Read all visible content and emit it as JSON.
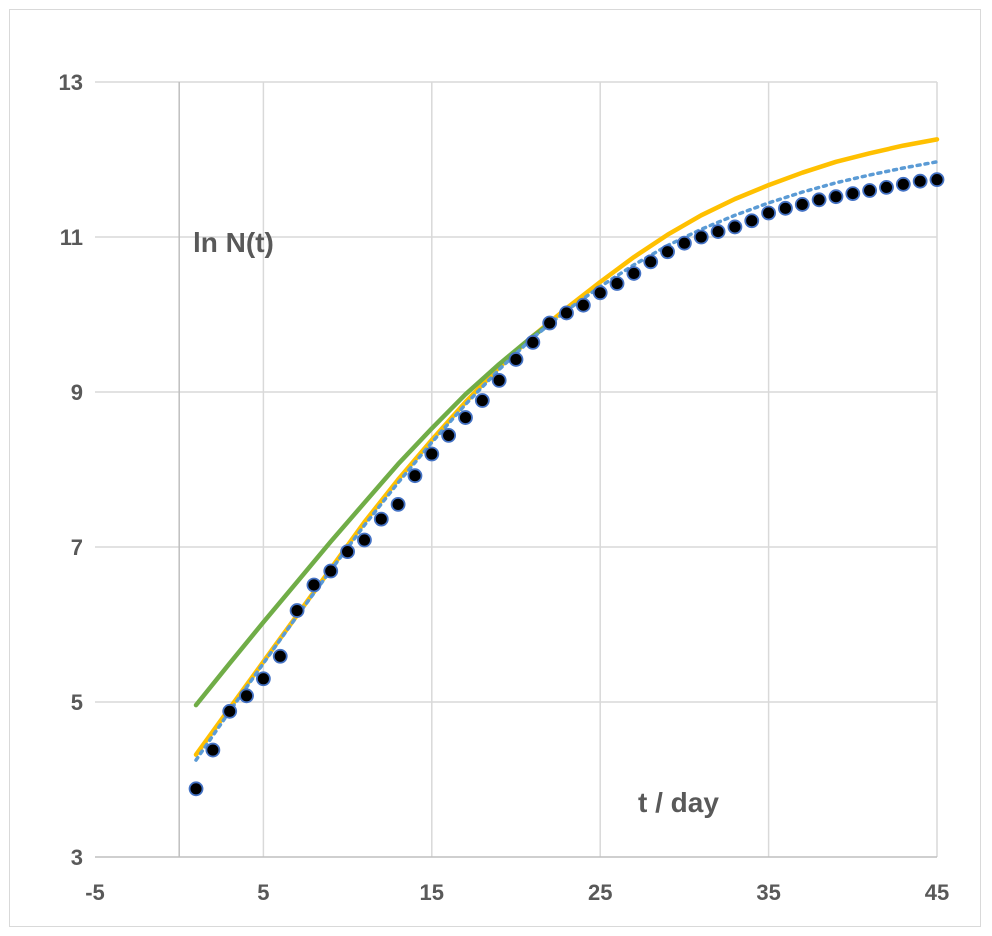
{
  "chart_data": {
    "type": "scatter",
    "title": "",
    "xlabel": "t / day",
    "ylabel": "ln N(t)",
    "xlim": [
      -5,
      45
    ],
    "ylim": [
      3,
      13
    ],
    "x_ticks": [
      "-5",
      "5",
      "15",
      "25",
      "35",
      "45"
    ],
    "y_ticks": [
      "3",
      "5",
      "7",
      "9",
      "11",
      "13"
    ],
    "x_tick_values": [
      -5,
      5,
      15,
      25,
      35,
      45
    ],
    "y_tick_values": [
      3,
      5,
      7,
      9,
      11,
      13
    ],
    "grid": true,
    "legend": "none",
    "colors": {
      "observed_fill": "#000000",
      "observed_edge": "#4472c4",
      "fit_orange": "#ffc000",
      "fit_green": "#70ad47",
      "fit_blue_dotted": "#5b9bd5",
      "grid": "#d9d9d9",
      "axis": "#bfbfbf",
      "text": "#595959"
    },
    "series": [
      {
        "style": "markers",
        "x": [
          1,
          2,
          3,
          4,
          5,
          6,
          7,
          8,
          9,
          10,
          11,
          12,
          13,
          14,
          15,
          16,
          17,
          18,
          19,
          20,
          21,
          22,
          23,
          24,
          25,
          26,
          27,
          28,
          29,
          30,
          31,
          32,
          33,
          34,
          35,
          36,
          37,
          38,
          39,
          40,
          41,
          42,
          43,
          44,
          45
        ],
        "y": [
          3.88,
          4.38,
          4.88,
          5.08,
          5.3,
          5.59,
          6.18,
          6.51,
          6.69,
          6.94,
          7.09,
          7.36,
          7.55,
          7.92,
          8.2,
          8.44,
          8.67,
          8.89,
          9.15,
          9.42,
          9.64,
          9.89,
          10.02,
          10.12,
          10.28,
          10.4,
          10.53,
          10.68,
          10.81,
          10.92,
          11.0,
          11.07,
          11.13,
          11.21,
          11.31,
          11.37,
          11.42,
          11.48,
          11.52,
          11.56,
          11.6,
          11.64,
          11.68,
          11.72,
          11.74
        ]
      },
      {
        "style": "solid-orange",
        "x": [
          1,
          3,
          5,
          7,
          9,
          11,
          13,
          15,
          17,
          19,
          21,
          23,
          25,
          27,
          29,
          31,
          33,
          35,
          37,
          39,
          41,
          43,
          45
        ],
        "y": [
          4.32,
          4.92,
          5.52,
          6.12,
          6.72,
          7.32,
          7.87,
          8.38,
          8.87,
          9.32,
          9.72,
          10.08,
          10.42,
          10.74,
          11.03,
          11.28,
          11.49,
          11.67,
          11.83,
          11.97,
          12.08,
          12.18,
          12.26
        ]
      },
      {
        "style": "solid-green",
        "x": [
          1,
          3,
          5,
          7,
          9,
          11,
          13,
          15,
          17,
          19,
          21,
          22
        ],
        "y": [
          4.96,
          5.5,
          6.03,
          6.55,
          7.07,
          7.57,
          8.07,
          8.53,
          8.97,
          9.36,
          9.72,
          9.88
        ]
      },
      {
        "style": "dotted-blue",
        "x": [
          1,
          3,
          5,
          7,
          9,
          11,
          13,
          15,
          17,
          19,
          21,
          23,
          25,
          27,
          29,
          31,
          33,
          35,
          37,
          39,
          41,
          43,
          45
        ],
        "y": [
          4.25,
          4.88,
          5.5,
          6.11,
          6.7,
          7.28,
          7.83,
          8.35,
          8.84,
          9.29,
          9.7,
          10.05,
          10.36,
          10.64,
          10.89,
          11.1,
          11.28,
          11.44,
          11.58,
          11.7,
          11.8,
          11.89,
          11.97
        ]
      }
    ]
  }
}
